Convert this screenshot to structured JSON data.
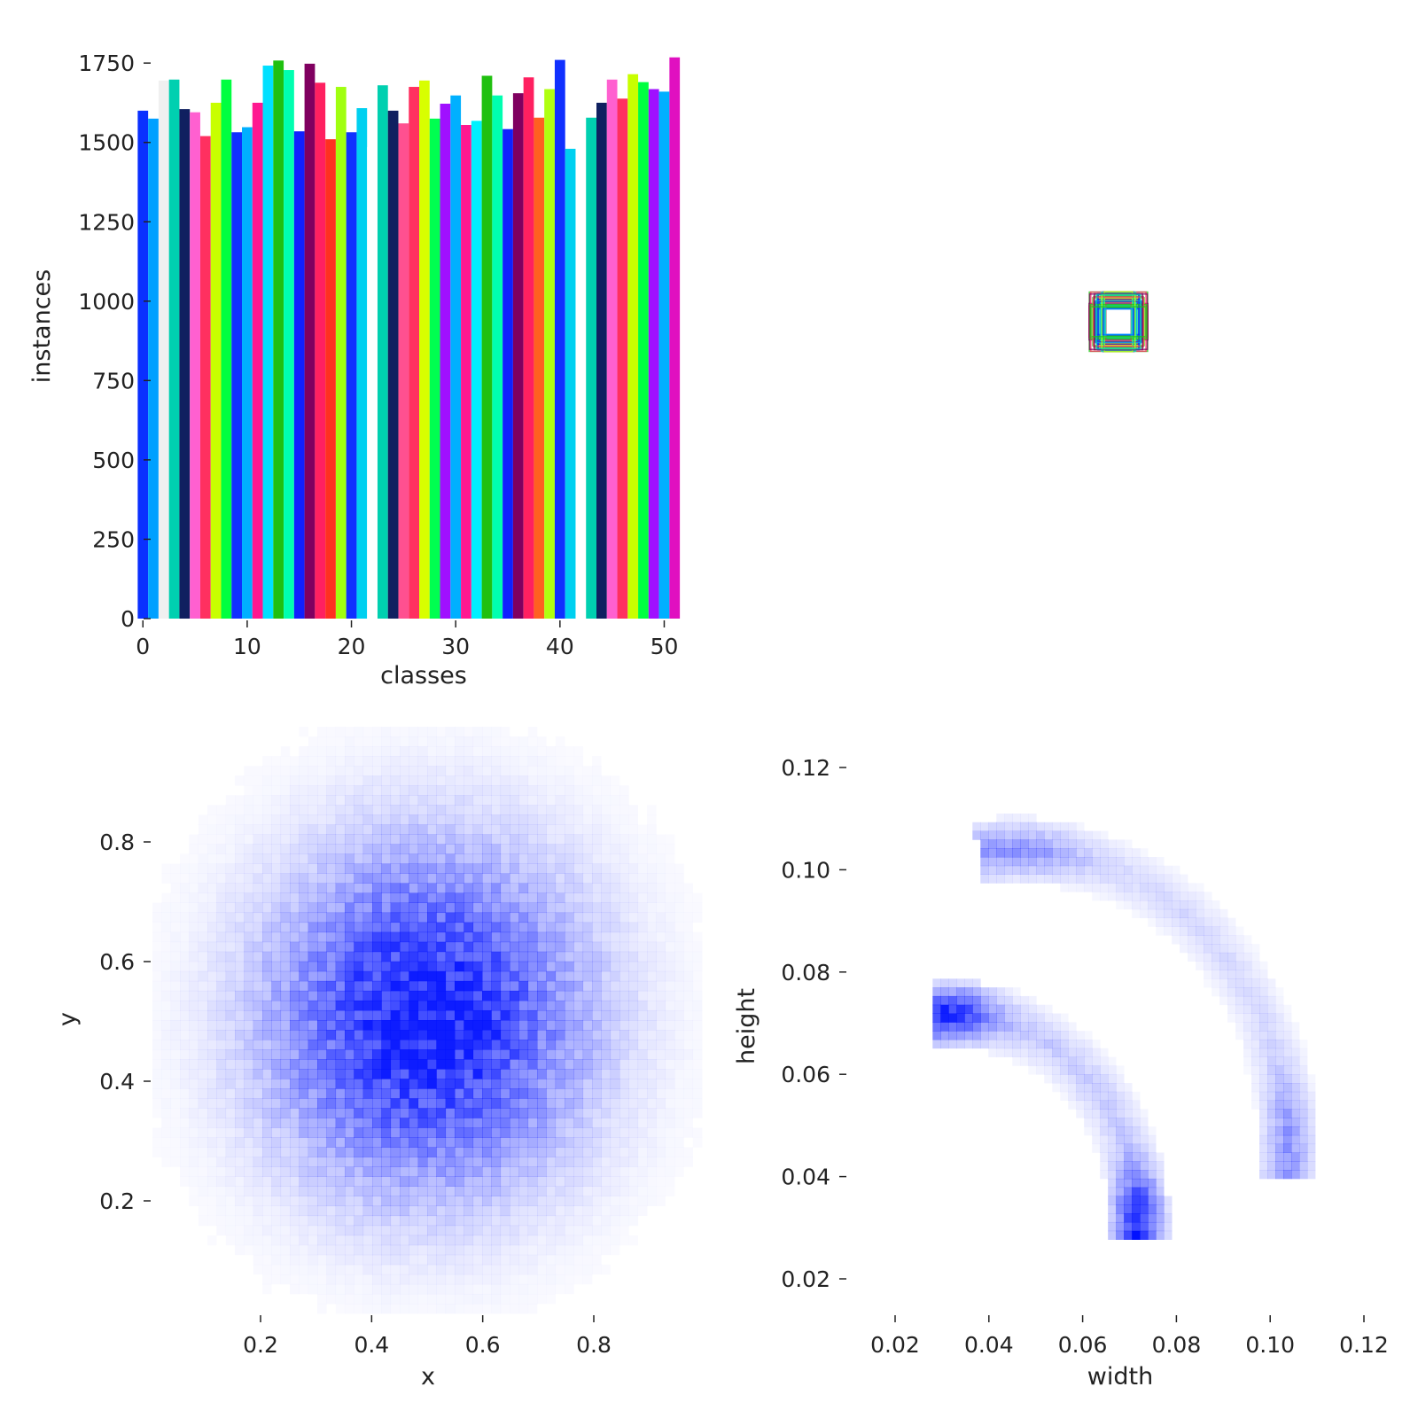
{
  "chart_data": [
    {
      "type": "bar",
      "xlabel": "classes",
      "ylabel": "instances",
      "xticks": [
        0,
        10,
        20,
        30,
        40,
        50
      ],
      "yticks": [
        0,
        250,
        500,
        750,
        1000,
        1250,
        1500,
        1750
      ],
      "xlim": [
        -1,
        52
      ],
      "ylim": [
        0,
        1770
      ],
      "grid": false,
      "categories": [
        0,
        1,
        2,
        3,
        4,
        5,
        6,
        7,
        8,
        9,
        10,
        11,
        12,
        13,
        14,
        15,
        16,
        17,
        18,
        19,
        20,
        21,
        22,
        23,
        24,
        25,
        26,
        27,
        28,
        29,
        30,
        31,
        32,
        33,
        34,
        35,
        36,
        37,
        38,
        39,
        40,
        41,
        42,
        43,
        44,
        45,
        46,
        47,
        48,
        49,
        50,
        51
      ],
      "values": [
        1600,
        1575,
        1695,
        1698,
        1605,
        1595,
        1520,
        1625,
        1698,
        1532,
        1548,
        1625,
        1742,
        1758,
        1728,
        1535,
        1748,
        1688,
        1510,
        1675,
        1532,
        1608,
        1485,
        1680,
        1600,
        1560,
        1675,
        1695,
        1575,
        1622,
        1648,
        1555,
        1568,
        1710,
        1648,
        1542,
        1655,
        1705,
        1578,
        1668,
        1760,
        1480,
        1482,
        1578,
        1625,
        1698,
        1638,
        1715,
        1690,
        1668,
        1660,
        1768
      ],
      "colors": [
        "#0a30ff",
        "#00a0ff",
        "#f0f0f0",
        "#00d0b0",
        "#102060",
        "#ff60d0",
        "#ff3060",
        "#c8ff00",
        "#00ff40",
        "#1030ff",
        "#00b0ff",
        "#ff1890",
        "#00e0ff",
        "#20c010",
        "#00ffb0",
        "#1020ff",
        "#800060",
        "#ff2060",
        "#ff3020",
        "#a0ff10",
        "#1030ff",
        "#00d0f0",
        "#ffffff",
        "#00d0b0",
        "#102060",
        "#ff5090",
        "#ff3060",
        "#d8ff00",
        "#00ff50",
        "#a010ff",
        "#00b0ff",
        "#ff1890",
        "#00f0ff",
        "#20c010",
        "#00ffb0",
        "#1020ff",
        "#800060",
        "#ff2060",
        "#ff6020",
        "#b0ff10",
        "#1030ff",
        "#00d0f0",
        "#ffffff",
        "#00d0b0",
        "#102060",
        "#ff60d0",
        "#ff3060",
        "#c8ff00",
        "#00ff40",
        "#a010ff",
        "#00b0ff",
        "#e010c0"
      ]
    },
    {
      "type": "boxes",
      "colors": [
        "#0a30ff",
        "#00a0ff",
        "#00d0b0",
        "#20c010",
        "#00ffb0",
        "#ff3060",
        "#800060",
        "#c8ff00"
      ]
    },
    {
      "type": "heatmap",
      "xlabel": "x",
      "ylabel": "y",
      "xticks": [
        0.2,
        0.4,
        0.6,
        0.8
      ],
      "yticks": [
        0.2,
        0.4,
        0.6,
        0.8
      ],
      "xlim": [
        0.0,
        1.0
      ],
      "ylim": [
        0.0,
        1.0
      ],
      "center": [
        0.5,
        0.5
      ],
      "spread": 0.19,
      "bins": 60,
      "color": "#0010ff"
    },
    {
      "type": "heatmap",
      "xlabel": "width",
      "ylabel": "height",
      "xticks": [
        0.02,
        0.04,
        0.06,
        0.08,
        0.1,
        0.12
      ],
      "yticks": [
        0.02,
        0.04,
        0.06,
        0.08,
        0.1,
        0.12
      ],
      "xtick_labels": [
        "0.02",
        "0.04",
        "0.06",
        "0.08",
        "0.10",
        "0.12"
      ],
      "ytick_labels": [
        "0.02",
        "0.04",
        "0.06",
        "0.08",
        "0.10",
        "0.12"
      ],
      "xlim": [
        0.0,
        0.13
      ],
      "ylim": [
        0.0,
        0.13
      ],
      "color": "#0010ff",
      "arcs": [
        {
          "cx": 0.031,
          "cy": 0.031,
          "r": 0.04,
          "a0": 0,
          "a1": 90,
          "min": 0.22,
          "max": 0.95
        },
        {
          "cx": 0.045,
          "cy": 0.045,
          "r": 0.058,
          "a0": 0,
          "a1": 90,
          "min": 0.16,
          "max": 0.45
        }
      ]
    }
  ]
}
